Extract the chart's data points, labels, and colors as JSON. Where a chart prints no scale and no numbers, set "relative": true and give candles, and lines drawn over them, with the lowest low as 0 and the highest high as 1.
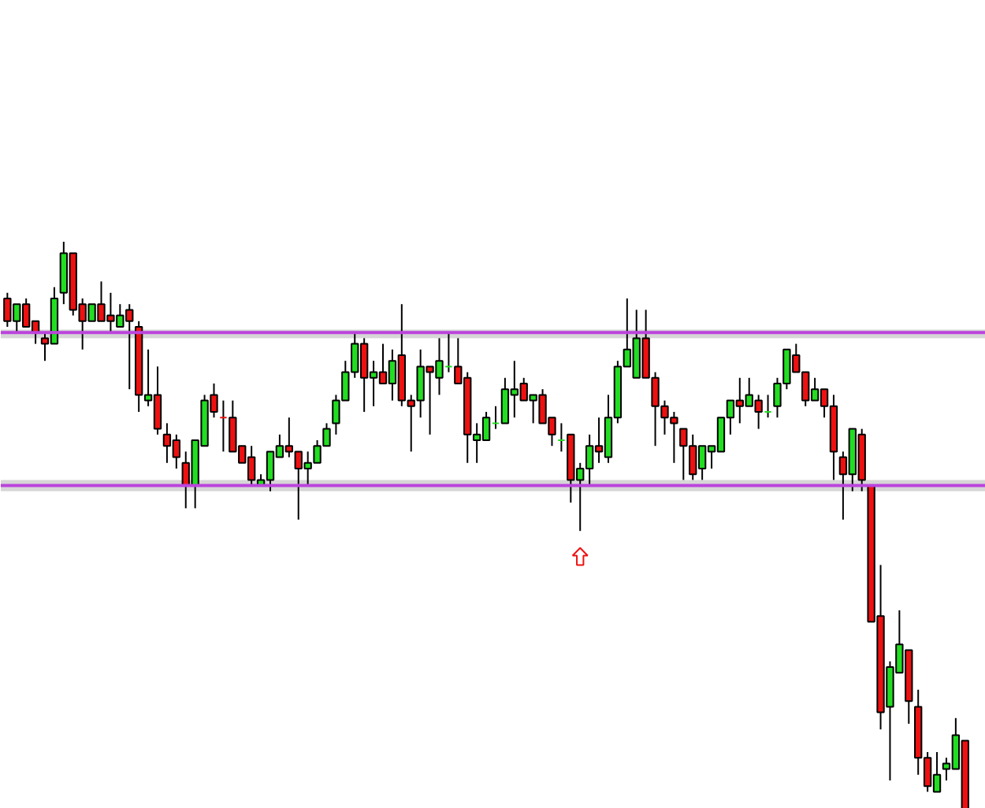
{
  "chart_data": {
    "type": "candlestick",
    "relative": true,
    "grid": false,
    "categories": [
      null,
      null,
      null,
      null,
      null,
      null,
      null,
      null,
      null,
      null,
      null,
      null,
      null,
      null,
      null,
      null,
      null,
      null,
      null,
      null,
      null,
      null,
      null,
      null,
      null,
      null,
      null,
      null,
      null,
      null,
      null,
      null,
      null,
      null,
      null,
      null,
      null,
      null,
      null,
      null,
      null,
      null,
      null,
      null,
      null,
      null,
      null,
      null,
      null,
      null,
      null,
      null,
      null,
      null,
      null,
      null,
      null,
      null,
      null,
      null,
      null,
      null,
      null,
      null,
      null,
      null,
      null,
      null,
      null,
      null,
      null,
      null,
      null,
      null,
      null,
      null,
      null,
      null,
      null,
      null,
      null,
      null,
      null,
      null,
      null,
      null,
      null,
      null,
      null,
      null,
      null,
      null,
      null,
      null,
      null,
      null,
      null,
      null,
      null,
      null,
      null,
      null,
      null
    ],
    "ohlc": [
      [
        0.9,
        0.91,
        0.85,
        0.86
      ],
      [
        0.86,
        0.89,
        0.84,
        0.89
      ],
      [
        0.89,
        0.9,
        0.85,
        0.85
      ],
      [
        0.86,
        0.86,
        0.82,
        0.84
      ],
      [
        0.83,
        0.84,
        0.79,
        0.82
      ],
      [
        0.82,
        0.92,
        0.82,
        0.9
      ],
      [
        0.91,
        1.0,
        0.89,
        0.98
      ],
      [
        0.98,
        0.98,
        0.87,
        0.88
      ],
      [
        0.89,
        0.9,
        0.81,
        0.86
      ],
      [
        0.86,
        0.89,
        0.86,
        0.89
      ],
      [
        0.89,
        0.93,
        0.86,
        0.86
      ],
      [
        0.87,
        0.91,
        0.84,
        0.86
      ],
      [
        0.85,
        0.89,
        0.85,
        0.87
      ],
      [
        0.88,
        0.89,
        0.74,
        0.86
      ],
      [
        0.85,
        0.86,
        0.7,
        0.73
      ],
      [
        0.72,
        0.81,
        0.71,
        0.73
      ],
      [
        0.73,
        0.78,
        0.66,
        0.67
      ],
      [
        0.66,
        0.68,
        0.61,
        0.64
      ],
      [
        0.65,
        0.66,
        0.6,
        0.62
      ],
      [
        0.61,
        0.63,
        0.53,
        0.57
      ],
      [
        0.57,
        0.65,
        0.53,
        0.65
      ],
      [
        0.64,
        0.73,
        0.64,
        0.72
      ],
      [
        0.73,
        0.75,
        0.69,
        0.7
      ],
      [
        0.69,
        0.72,
        0.63,
        0.69
      ],
      [
        0.69,
        0.72,
        0.63,
        0.63
      ],
      [
        0.64,
        0.64,
        0.61,
        0.61
      ],
      [
        0.62,
        0.64,
        0.57,
        0.58
      ],
      [
        0.57,
        0.59,
        0.57,
        0.58
      ],
      [
        0.58,
        0.63,
        0.56,
        0.63
      ],
      [
        0.62,
        0.66,
        0.62,
        0.64
      ],
      [
        0.64,
        0.69,
        0.62,
        0.63
      ],
      [
        0.63,
        0.63,
        0.51,
        0.6
      ],
      [
        0.6,
        0.63,
        0.57,
        0.61
      ],
      [
        0.61,
        0.65,
        0.61,
        0.64
      ],
      [
        0.64,
        0.68,
        0.64,
        0.67
      ],
      [
        0.68,
        0.73,
        0.66,
        0.72
      ],
      [
        0.72,
        0.79,
        0.72,
        0.77
      ],
      [
        0.77,
        0.84,
        0.76,
        0.82
      ],
      [
        0.82,
        0.83,
        0.7,
        0.76
      ],
      [
        0.76,
        0.79,
        0.71,
        0.77
      ],
      [
        0.77,
        0.82,
        0.75,
        0.75
      ],
      [
        0.75,
        0.81,
        0.72,
        0.79
      ],
      [
        0.8,
        0.89,
        0.71,
        0.72
      ],
      [
        0.72,
        0.73,
        0.63,
        0.71
      ],
      [
        0.72,
        0.81,
        0.69,
        0.78
      ],
      [
        0.78,
        0.78,
        0.66,
        0.77
      ],
      [
        0.76,
        0.83,
        0.73,
        0.79
      ],
      [
        0.78,
        0.84,
        0.77,
        0.78
      ],
      [
        0.78,
        0.83,
        0.75,
        0.75
      ],
      [
        0.76,
        0.77,
        0.61,
        0.66
      ],
      [
        0.65,
        0.68,
        0.61,
        0.66
      ],
      [
        0.65,
        0.7,
        0.65,
        0.69
      ],
      [
        0.68,
        0.71,
        0.67,
        0.68
      ],
      [
        0.68,
        0.76,
        0.68,
        0.74
      ],
      [
        0.73,
        0.79,
        0.69,
        0.74
      ],
      [
        0.75,
        0.76,
        0.72,
        0.72
      ],
      [
        0.72,
        0.73,
        0.68,
        0.73
      ],
      [
        0.73,
        0.74,
        0.68,
        0.68
      ],
      [
        0.69,
        0.69,
        0.64,
        0.66
      ],
      [
        0.65,
        0.68,
        0.63,
        0.65
      ],
      [
        0.66,
        0.66,
        0.54,
        0.58
      ],
      [
        0.58,
        0.61,
        0.49,
        0.6
      ],
      [
        0.6,
        0.66,
        0.57,
        0.64
      ],
      [
        0.64,
        0.69,
        0.61,
        0.63
      ],
      [
        0.62,
        0.73,
        0.61,
        0.69
      ],
      [
        0.69,
        0.79,
        0.68,
        0.78
      ],
      [
        0.78,
        0.9,
        0.78,
        0.81
      ],
      [
        0.76,
        0.88,
        0.76,
        0.83
      ],
      [
        0.83,
        0.88,
        0.76,
        0.76
      ],
      [
        0.76,
        0.77,
        0.64,
        0.71
      ],
      [
        0.71,
        0.72,
        0.66,
        0.69
      ],
      [
        0.69,
        0.7,
        0.61,
        0.68
      ],
      [
        0.67,
        0.67,
        0.58,
        0.64
      ],
      [
        0.64,
        0.66,
        0.58,
        0.59
      ],
      [
        0.6,
        0.64,
        0.58,
        0.64
      ],
      [
        0.63,
        0.64,
        0.6,
        0.64
      ],
      [
        0.63,
        0.69,
        0.63,
        0.69
      ],
      [
        0.69,
        0.72,
        0.66,
        0.72
      ],
      [
        0.72,
        0.76,
        0.68,
        0.71
      ],
      [
        0.71,
        0.76,
        0.71,
        0.73
      ],
      [
        0.72,
        0.73,
        0.67,
        0.7
      ],
      [
        0.7,
        0.73,
        0.69,
        0.7
      ],
      [
        0.71,
        0.76,
        0.69,
        0.75
      ],
      [
        0.75,
        0.81,
        0.74,
        0.81
      ],
      [
        0.8,
        0.82,
        0.77,
        0.77
      ],
      [
        0.77,
        0.77,
        0.71,
        0.72
      ],
      [
        0.72,
        0.76,
        0.72,
        0.74
      ],
      [
        0.74,
        0.74,
        0.69,
        0.71
      ],
      [
        0.71,
        0.73,
        0.58,
        0.63
      ],
      [
        0.62,
        0.63,
        0.51,
        0.59
      ],
      [
        0.59,
        0.67,
        0.56,
        0.67
      ],
      [
        0.66,
        0.67,
        0.56,
        0.58
      ],
      [
        0.57,
        0.57,
        0.33,
        0.33
      ],
      [
        0.34,
        0.43,
        0.14,
        0.17
      ],
      [
        0.18,
        0.26,
        0.05,
        0.25
      ],
      [
        0.24,
        0.35,
        0.24,
        0.29
      ],
      [
        0.28,
        0.28,
        0.15,
        0.19
      ],
      [
        0.18,
        0.21,
        0.06,
        0.09
      ],
      [
        0.09,
        0.1,
        0.03,
        0.04
      ],
      [
        0.03,
        0.1,
        0.03,
        0.06
      ],
      [
        0.07,
        0.09,
        0.05,
        0.08
      ],
      [
        0.07,
        0.16,
        0.07,
        0.13
      ],
      [
        0.12,
        0.12,
        0.0,
        0.0
      ]
    ],
    "colors": [
      "#ee1111",
      "#22dd22",
      "#ee1111",
      "#ee1111",
      "#ee1111",
      "#22dd22",
      "#22dd22",
      "#ee1111",
      "#ee1111",
      "#22dd22",
      "#ee1111",
      "#ee1111",
      "#22dd22",
      "#ee1111",
      "#ee1111",
      "#22dd22",
      "#ee1111",
      "#ee1111",
      "#ee1111",
      "#ee1111",
      "#22dd22",
      "#22dd22",
      "#ee1111",
      "#ee1111",
      "#ee1111",
      "#ee1111",
      "#ee1111",
      "#22dd22",
      "#22dd22",
      "#22dd22",
      "#ee1111",
      "#ee1111",
      "#22dd22",
      "#22dd22",
      "#22dd22",
      "#22dd22",
      "#22dd22",
      "#22dd22",
      "#ee1111",
      "#22dd22",
      "#ee1111",
      "#22dd22",
      "#ee1111",
      "#ee1111",
      "#22dd22",
      "#ee1111",
      "#22dd22",
      "#22dd22",
      "#ee1111",
      "#ee1111",
      "#22dd22",
      "#22dd22",
      "#22dd22",
      "#22dd22",
      "#22dd22",
      "#ee1111",
      "#22dd22",
      "#ee1111",
      "#ee1111",
      "#22dd22",
      "#ee1111",
      "#22dd22",
      "#22dd22",
      "#ee1111",
      "#22dd22",
      "#22dd22",
      "#22dd22",
      "#22dd22",
      "#ee1111",
      "#ee1111",
      "#ee1111",
      "#ee1111",
      "#ee1111",
      "#ee1111",
      "#22dd22",
      "#22dd22",
      "#22dd22",
      "#22dd22",
      "#ee1111",
      "#22dd22",
      "#ee1111",
      "#22dd22",
      "#22dd22",
      "#22dd22",
      "#ee1111",
      "#ee1111",
      "#22dd22",
      "#ee1111",
      "#ee1111",
      "#ee1111",
      "#22dd22",
      "#ee1111",
      "#ee1111",
      "#ee1111",
      "#22dd22",
      "#22dd22",
      "#ee1111",
      "#ee1111",
      "#ee1111",
      "#22dd22",
      "#22dd22",
      "#22dd22",
      "#ee1111"
    ],
    "ref_lines": [
      {
        "axis": "y",
        "value": 0.84,
        "color": "#bb44dd"
      },
      {
        "axis": "y",
        "value": 0.57,
        "color": "#bb44dd"
      }
    ],
    "bands": [
      {
        "axis": "y",
        "from": 0.83,
        "to": 0.845,
        "color": "#cccccc"
      },
      {
        "axis": "y",
        "from": 0.56,
        "to": 0.58,
        "color": "#cccccc"
      }
    ]
  }
}
